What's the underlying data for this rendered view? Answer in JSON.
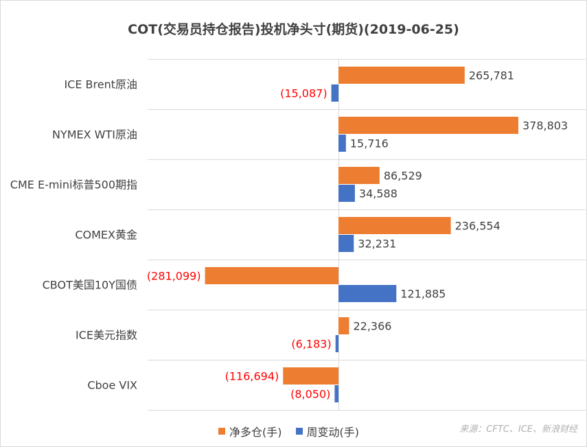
{
  "chart_data": {
    "type": "bar",
    "orientation": "horizontal",
    "title": "COT(交易员持仓报告)投机净头寸(期货)(2019-06-25)",
    "categories": [
      "ICE Brent原油",
      "NYMEX WTI原油",
      "CME E-mini标普500期指",
      "COMEX黄金",
      "CBOT美国10Y国债",
      "ICE美元指数",
      "Cboe VIX"
    ],
    "series": [
      {
        "name": "净多仓(手)",
        "color": "#ED7D31",
        "values": [
          265781,
          378803,
          86529,
          236554,
          -281099,
          22366,
          -116694
        ],
        "labels": [
          "265,781",
          "378,803",
          "86,529",
          "236,554",
          "(281,099)",
          "22,366",
          "(116,694)"
        ]
      },
      {
        "name": "周变动(手)",
        "color": "#4472C4",
        "values": [
          -15087,
          15716,
          34588,
          32231,
          121885,
          -6183,
          -8050
        ],
        "labels": [
          "(15,087)",
          "15,716",
          "34,588",
          "32,231",
          "121,885",
          "(6,183)",
          "(8,050)"
        ]
      }
    ],
    "xlim": [
      -400000,
      400000
    ],
    "grid": "horizontal category separators",
    "legend_position": "bottom",
    "negative_label_color": "#FF0000",
    "positive_label_color": "#404040"
  },
  "source_note": "来源：CFTC、ICE、新浪财经"
}
